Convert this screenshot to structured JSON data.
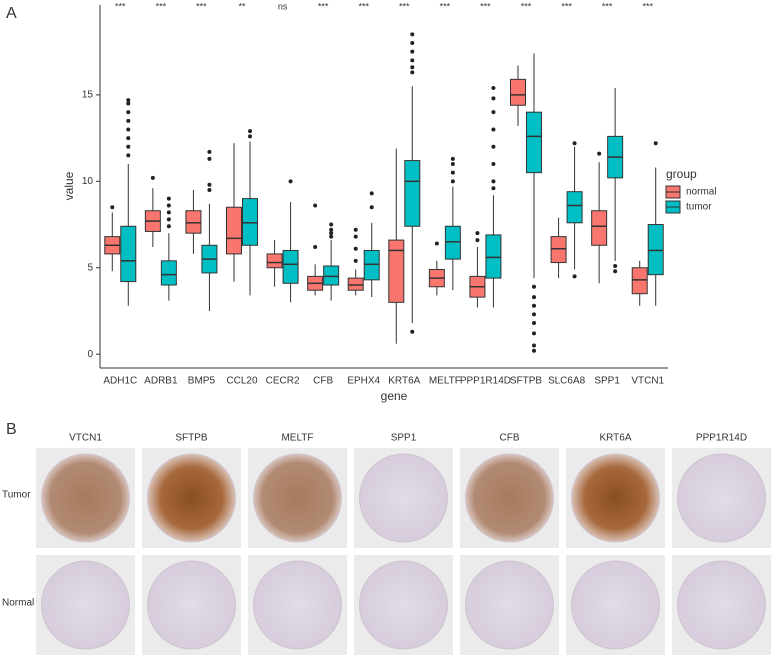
{
  "panel_labels": [
    "A",
    "B"
  ],
  "chart_data": {
    "type": "boxplot",
    "x_label": "gene",
    "y_label": "value",
    "legend_title": "group",
    "categories": [
      "ADH1C",
      "ADRB1",
      "BMP5",
      "CCL20",
      "CECR2",
      "CFB",
      "EPHX4",
      "KRT6A",
      "MELTF",
      "PPP1R14D",
      "SFTPB",
      "SLC6A8",
      "SPP1",
      "VTCN1"
    ],
    "annotations": [
      "***",
      "***",
      "***",
      "**",
      "ns",
      "***",
      "***",
      "***",
      "***",
      "***",
      "***",
      "***",
      "***",
      "***"
    ],
    "ylim": [
      -0.8,
      20.2
    ],
    "yticks": [
      0,
      5,
      10,
      15
    ],
    "grid": false,
    "legend": "right",
    "series": [
      {
        "name": "normal",
        "color": "#f8766d",
        "low": [
          4.8,
          6.2,
          5.8,
          4.2,
          3.9,
          3.4,
          3.4,
          0.6,
          3.4,
          2.7,
          13.2,
          4.4,
          4.1,
          2.8
        ],
        "q1": [
          5.8,
          7.1,
          7.0,
          5.8,
          5.0,
          3.7,
          3.7,
          3.0,
          3.9,
          3.3,
          14.4,
          5.3,
          6.3,
          3.5
        ],
        "median": [
          6.3,
          7.7,
          7.6,
          6.7,
          5.3,
          4.1,
          4.0,
          6.0,
          4.4,
          3.9,
          15.0,
          6.1,
          7.4,
          4.3
        ],
        "q3": [
          6.8,
          8.3,
          8.3,
          8.5,
          5.8,
          4.5,
          4.4,
          6.6,
          4.9,
          4.5,
          15.9,
          6.8,
          8.3,
          5.0
        ],
        "high": [
          8.2,
          9.6,
          9.5,
          12.2,
          6.6,
          5.2,
          4.9,
          11.9,
          5.4,
          6.2,
          16.7,
          7.9,
          11.1,
          5.4
        ],
        "outliers": [
          [
            8.5
          ],
          [
            10.2
          ],
          [],
          [],
          [],
          [
            6.2,
            8.6
          ],
          [
            5.4,
            6.1,
            6.8,
            7.2
          ],
          [],
          [
            6.4
          ],
          [
            6.6,
            7.0
          ],
          [],
          [],
          [
            11.6
          ],
          []
        ]
      },
      {
        "name": "tumor",
        "color": "#00bfc4",
        "low": [
          2.8,
          3.1,
          2.5,
          3.4,
          3.0,
          3.1,
          3.3,
          1.8,
          3.7,
          2.7,
          4.4,
          4.9,
          5.4,
          2.8
        ],
        "q1": [
          4.2,
          4.0,
          4.7,
          6.3,
          4.1,
          4.0,
          4.3,
          7.4,
          5.5,
          4.4,
          10.5,
          7.6,
          10.2,
          4.6
        ],
        "median": [
          5.4,
          4.6,
          5.5,
          7.6,
          5.2,
          4.5,
          5.2,
          10.0,
          6.5,
          5.6,
          12.6,
          8.6,
          11.4,
          6.0
        ],
        "q3": [
          7.4,
          5.4,
          6.3,
          9.0,
          6.0,
          5.1,
          6.0,
          11.2,
          7.4,
          6.9,
          14.0,
          9.4,
          12.6,
          7.5
        ],
        "high": [
          11.0,
          7.0,
          8.7,
          12.3,
          8.8,
          6.6,
          7.6,
          15.5,
          9.7,
          9.2,
          17.4,
          12.0,
          15.4,
          10.8
        ],
        "outliers": [
          [
            11.5,
            12.0,
            12.5,
            13.0,
            13.5,
            14.0,
            14.5,
            14.7
          ],
          [
            7.4,
            7.8,
            8.2,
            8.6,
            9.0
          ],
          [
            9.5,
            9.8,
            11.3,
            11.7
          ],
          [
            12.6,
            12.9
          ],
          [
            10.0
          ],
          [
            6.8,
            7.0,
            7.2,
            7.5
          ],
          [
            8.5,
            9.3
          ],
          [
            1.3,
            16.3,
            16.6,
            17.0,
            17.5,
            18.0,
            18.5
          ],
          [
            10.0,
            10.5,
            11.0,
            11.3
          ],
          [
            9.6,
            10.0,
            11.0,
            12.0,
            13.0,
            14.0,
            14.8,
            15.4
          ],
          [
            0.2,
            0.5,
            1.2,
            1.8,
            2.3,
            2.8,
            3.3,
            3.9
          ],
          [
            4.5,
            12.2
          ],
          [
            4.8,
            5.1
          ],
          [
            12.2
          ]
        ]
      }
    ]
  },
  "ihc": {
    "columns": [
      "VTCN1",
      "SFTPB",
      "MELTF",
      "SPP1",
      "CFB",
      "KRT6A",
      "PPP1R14D"
    ],
    "rows": [
      "Tumor",
      "Normal"
    ]
  }
}
